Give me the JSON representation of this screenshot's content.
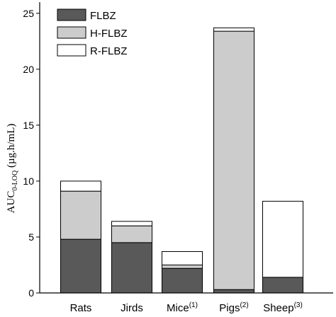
{
  "chart_data": {
    "type": "bar",
    "stacked": true,
    "categories": [
      {
        "label": "Rats",
        "sup": ""
      },
      {
        "label": "Jirds",
        "sup": ""
      },
      {
        "label": "Mice",
        "sup": "(1)"
      },
      {
        "label": "Pigs",
        "sup": "(2)"
      },
      {
        "label": "Sheep",
        "sup": "(3)"
      }
    ],
    "series": [
      {
        "name": "FLBZ",
        "color": "#595959",
        "values": [
          4.8,
          4.5,
          2.2,
          0.3,
          1.4
        ]
      },
      {
        "name": "H-FLBZ",
        "color": "#cccccc",
        "values": [
          4.3,
          1.5,
          0.3,
          23.1,
          0.0
        ]
      },
      {
        "name": "R-FLBZ",
        "color": "#ffffff",
        "values": [
          0.9,
          0.4,
          1.2,
          0.3,
          6.8
        ]
      }
    ],
    "ylabel": {
      "main": "AUC",
      "sub": "0-LOQ",
      "rest": " (µg.h/mL)"
    },
    "ylim": [
      0,
      26
    ],
    "yticks": [
      0,
      5,
      10,
      15,
      20,
      25
    ],
    "grid": false,
    "legend_position": "top-left"
  }
}
